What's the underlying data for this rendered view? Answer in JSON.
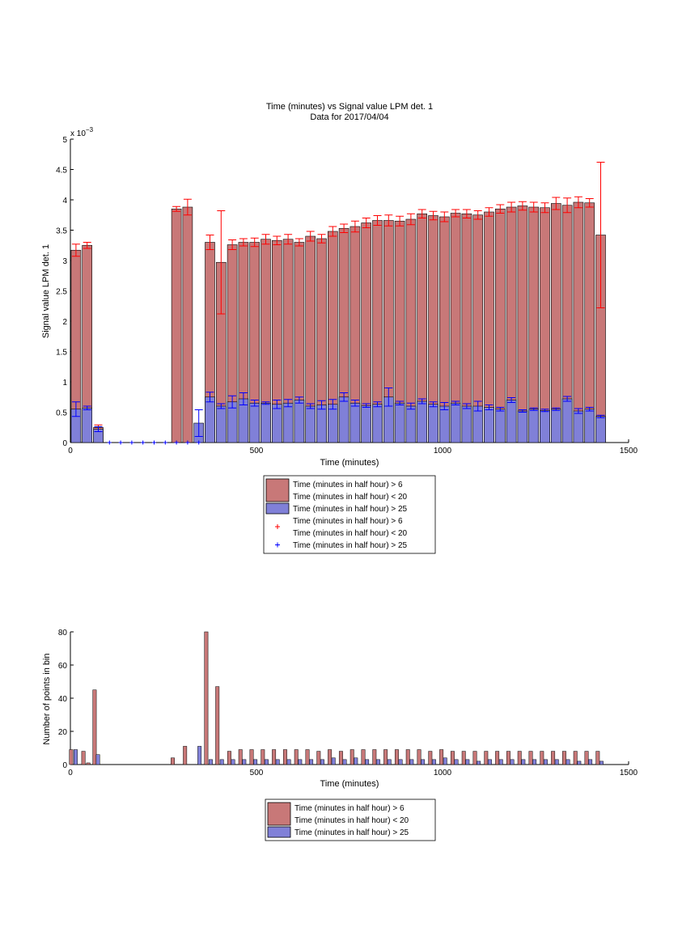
{
  "chart_data": [
    {
      "type": "bar",
      "title": "Time (minutes) vs Signal value LPM det. 1",
      "subtitle": "Data for 2017/04/04",
      "xlabel": "Time (minutes)",
      "ylabel": "Signal value LPM det. 1",
      "exponent_label": "x 10",
      "exponent_power": "−3",
      "xlim": [
        0,
        1500
      ],
      "ylim": [
        0,
        0.005
      ],
      "xticks": [
        "0",
        "500",
        "1000",
        "1500"
      ],
      "yticks": [
        "0",
        "0.5",
        "1",
        "1.5",
        "2",
        "2.5",
        "3",
        "3.5",
        "4",
        "4.5",
        "5"
      ],
      "x": [
        15,
        45,
        75,
        105,
        135,
        165,
        195,
        225,
        255,
        285,
        315,
        345,
        375,
        405,
        435,
        465,
        495,
        525,
        555,
        585,
        615,
        645,
        675,
        705,
        735,
        765,
        795,
        825,
        855,
        885,
        915,
        945,
        975,
        1005,
        1035,
        1065,
        1095,
        1125,
        1155,
        1185,
        1215,
        1245,
        1275,
        1305,
        1335,
        1365,
        1395,
        1425
      ],
      "series": [
        {
          "name": "Time (minutes in half hour) > 6 Time (minutes in half hour) < 20",
          "color": "#c87878",
          "errcolor": "#ff0000",
          "values": [
            0.00317,
            0.00325,
            0.00025,
            0,
            0,
            0,
            0,
            0,
            0,
            0.00385,
            0.00388,
            0,
            0.0033,
            0.00297,
            0.00326,
            0.0033,
            0.0033,
            0.00335,
            0.00333,
            0.00335,
            0.0033,
            0.0034,
            0.00336,
            0.00348,
            0.00353,
            0.00356,
            0.00362,
            0.00366,
            0.00366,
            0.00365,
            0.00368,
            0.00377,
            0.00374,
            0.00372,
            0.00378,
            0.00377,
            0.00375,
            0.0038,
            0.00385,
            0.00388,
            0.0039,
            0.00388,
            0.00387,
            0.00394,
            0.00391,
            0.00396,
            0.00395,
            0.00342
          ],
          "err": [
            0.0001,
            5e-05,
            4e-05,
            0,
            0,
            0,
            0,
            0,
            0,
            4e-05,
            0.00013,
            0,
            0.00012,
            0.00085,
            8e-05,
            6e-05,
            7e-05,
            8e-05,
            7e-05,
            8e-05,
            6e-05,
            8e-05,
            7e-05,
            8e-05,
            7e-05,
            9e-05,
            8e-05,
            8e-05,
            9e-05,
            8e-05,
            9e-05,
            7e-05,
            7e-05,
            8e-05,
            6e-05,
            7e-05,
            7e-05,
            7e-05,
            7e-05,
            8e-05,
            7e-05,
            8e-05,
            8e-05,
            0.0001,
            0.00012,
            9e-05,
            7e-05,
            0.0012
          ]
        },
        {
          "name": "Time (minutes in half hour) > 25",
          "color": "#8080d8",
          "errcolor": "#0000ff",
          "values": [
            0.00055,
            0.00057,
            0.00022,
            0,
            0,
            0,
            0,
            0,
            0,
            0,
            0,
            0.00032,
            0.00075,
            0.0006,
            0.00067,
            0.00072,
            0.00065,
            0.00065,
            0.00063,
            0.00065,
            0.0007,
            0.0006,
            0.00062,
            0.00063,
            0.00075,
            0.00065,
            0.00061,
            0.00063,
            0.00075,
            0.00065,
            0.0006,
            0.00068,
            0.00063,
            0.0006,
            0.00065,
            0.0006,
            0.0006,
            0.00058,
            0.00055,
            0.0007,
            0.00052,
            0.00055,
            0.00053,
            0.00055,
            0.00072,
            0.00052,
            0.00055,
            0.00043
          ],
          "err": [
            0.00012,
            3e-05,
            4e-05,
            0,
            0,
            0,
            0,
            0,
            0,
            0,
            0,
            0.00022,
            8e-05,
            4e-05,
            0.0001,
            0.0001,
            5e-05,
            2e-05,
            7e-05,
            6e-05,
            5e-05,
            4e-05,
            7e-05,
            8e-05,
            7e-05,
            5e-05,
            3e-05,
            4e-05,
            0.00015,
            3e-05,
            5e-05,
            4e-05,
            4e-05,
            6e-05,
            3e-05,
            4e-05,
            8e-05,
            4e-05,
            3e-05,
            4e-05,
            2e-05,
            2e-05,
            2e-05,
            2e-05,
            4e-05,
            4e-05,
            3e-05,
            2e-05
          ]
        }
      ],
      "zero_markers_x": [
        105,
        135,
        165,
        195,
        225,
        255,
        285,
        315,
        345
      ],
      "legend": {
        "placement": "below",
        "entries": [
          {
            "label": "Time (minutes in half hour) > 6",
            "label2": "Time (minutes in half hour) < 20",
            "kind": "patch",
            "color": "#c87878"
          },
          {
            "label": "Time (minutes in half hour) > 25",
            "kind": "patch",
            "color": "#8080d8"
          },
          {
            "label": "Time (minutes in half hour) > 6",
            "label2": "Time (minutes in half hour) < 20",
            "kind": "marker",
            "color": "#ff0000"
          },
          {
            "label": "Time (minutes in half hour) > 25",
            "kind": "marker",
            "color": "#0000ff"
          }
        ]
      }
    },
    {
      "type": "bar",
      "xlabel": "Time (minutes)",
      "ylabel": "Number of points in bin",
      "xlim": [
        0,
        1500
      ],
      "ylim": [
        0,
        80
      ],
      "xticks": [
        "0",
        "500",
        "1000",
        "1500"
      ],
      "yticks": [
        "0",
        "20",
        "40",
        "60",
        "80"
      ],
      "series": [
        {
          "name": "Time (minutes in half hour) > 6 Time (minutes in half hour) < 20",
          "color": "#c87878",
          "points": [
            [
              2,
              9
            ],
            [
              35,
              8
            ],
            [
              48,
              1
            ],
            [
              65,
              45
            ],
            [
              275,
              4
            ],
            [
              308,
              11
            ],
            [
              365,
              80
            ],
            [
              395,
              47
            ],
            [
              427,
              8
            ],
            [
              457,
              9
            ],
            [
              487,
              9
            ],
            [
              517,
              9
            ],
            [
              547,
              9
            ],
            [
              577,
              9
            ],
            [
              607,
              9
            ],
            [
              637,
              9
            ],
            [
              667,
              8
            ],
            [
              697,
              9
            ],
            [
              727,
              8
            ],
            [
              757,
              9
            ],
            [
              787,
              9
            ],
            [
              817,
              9
            ],
            [
              847,
              9
            ],
            [
              877,
              9
            ],
            [
              907,
              9
            ],
            [
              937,
              9
            ],
            [
              967,
              8
            ],
            [
              997,
              9
            ],
            [
              1027,
              8
            ],
            [
              1057,
              8
            ],
            [
              1087,
              8
            ],
            [
              1117,
              8
            ],
            [
              1147,
              8
            ],
            [
              1177,
              8
            ],
            [
              1207,
              8
            ],
            [
              1237,
              8
            ],
            [
              1267,
              8
            ],
            [
              1297,
              8
            ],
            [
              1327,
              8
            ],
            [
              1357,
              8
            ],
            [
              1387,
              8
            ],
            [
              1417,
              8
            ]
          ]
        },
        {
          "name": "Time (minutes in half hour) > 25",
          "color": "#8080d8",
          "points": [
            [
              14,
              9
            ],
            [
              74,
              6
            ],
            [
              347,
              11
            ],
            [
              377,
              3
            ],
            [
              407,
              3
            ],
            [
              437,
              3
            ],
            [
              467,
              3
            ],
            [
              497,
              3
            ],
            [
              527,
              3
            ],
            [
              557,
              3
            ],
            [
              587,
              3
            ],
            [
              617,
              3
            ],
            [
              647,
              3
            ],
            [
              677,
              3
            ],
            [
              707,
              4
            ],
            [
              737,
              3
            ],
            [
              767,
              4
            ],
            [
              797,
              3
            ],
            [
              827,
              3
            ],
            [
              857,
              3
            ],
            [
              887,
              3
            ],
            [
              917,
              3
            ],
            [
              947,
              3
            ],
            [
              977,
              3
            ],
            [
              1007,
              4
            ],
            [
              1037,
              3
            ],
            [
              1067,
              3
            ],
            [
              1097,
              2
            ],
            [
              1127,
              3
            ],
            [
              1157,
              3
            ],
            [
              1187,
              3
            ],
            [
              1217,
              3
            ],
            [
              1247,
              3
            ],
            [
              1277,
              3
            ],
            [
              1307,
              3
            ],
            [
              1337,
              3
            ],
            [
              1367,
              2
            ],
            [
              1397,
              3
            ],
            [
              1427,
              2
            ]
          ]
        }
      ],
      "legend": {
        "placement": "below",
        "entries": [
          {
            "label": "Time (minutes in half hour) > 6",
            "label2": "Time (minutes in half hour) < 20",
            "kind": "patch",
            "color": "#c87878"
          },
          {
            "label": "Time (minutes in half hour) > 25",
            "kind": "patch",
            "color": "#8080d8"
          }
        ]
      }
    }
  ]
}
